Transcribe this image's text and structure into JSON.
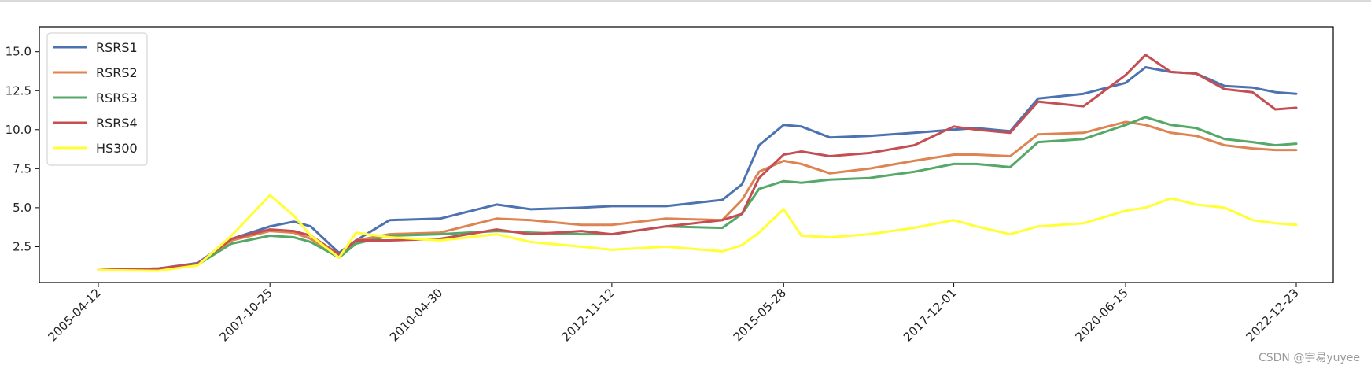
{
  "chart_data": {
    "type": "line",
    "title": "",
    "xlabel": "",
    "ylabel": "",
    "x_ticks": [
      "2005-04-12",
      "2007-10-25",
      "2010-04-30",
      "2012-11-12",
      "2015-05-28",
      "2017-12-01",
      "2020-06-15",
      "2022-12-23"
    ],
    "y_ticks": [
      "2.5",
      "5.0",
      "7.5",
      "10.0",
      "12.5",
      "15.0"
    ],
    "ylim": [
      0.2,
      16.6
    ],
    "grid": false,
    "legend_position": "upper-left",
    "x": [
      "2005-04-12",
      "2006-03-01",
      "2006-10-01",
      "2007-04-01",
      "2007-10-25",
      "2008-03-01",
      "2008-06-01",
      "2008-11-01",
      "2009-02-01",
      "2009-08-01",
      "2010-04-30",
      "2011-03-01",
      "2011-09-01",
      "2012-06-01",
      "2012-11-12",
      "2013-09-01",
      "2014-07-01",
      "2014-10-15",
      "2015-01-15",
      "2015-05-28",
      "2015-09-01",
      "2016-02-01",
      "2016-09-01",
      "2017-05-01",
      "2017-12-01",
      "2018-04-01",
      "2018-10-01",
      "2019-03-01",
      "2019-11-01",
      "2020-06-15",
      "2020-10-01",
      "2021-02-15",
      "2021-07-01",
      "2021-12-01",
      "2022-05-01",
      "2022-09-01",
      "2022-12-23"
    ],
    "series": [
      {
        "name": "RSRS1",
        "color": "#4c72b0",
        "values": [
          1.0,
          1.1,
          1.45,
          3.0,
          3.8,
          4.1,
          3.8,
          2.1,
          2.9,
          4.2,
          4.3,
          5.2,
          4.9,
          5.0,
          5.1,
          5.1,
          5.5,
          6.5,
          9.0,
          10.3,
          10.2,
          9.5,
          9.6,
          9.8,
          10.0,
          10.1,
          9.9,
          12.0,
          12.3,
          13.0,
          14.0,
          13.7,
          13.6,
          12.8,
          12.7,
          12.4,
          12.3
        ]
      },
      {
        "name": "RSRS2",
        "color": "#dd8452",
        "values": [
          1.0,
          1.1,
          1.4,
          2.9,
          3.5,
          3.4,
          3.0,
          1.9,
          2.9,
          3.3,
          3.4,
          4.3,
          4.2,
          3.9,
          3.9,
          4.3,
          4.2,
          5.5,
          7.3,
          8.0,
          7.8,
          7.2,
          7.5,
          8.0,
          8.4,
          8.4,
          8.3,
          9.7,
          9.8,
          10.5,
          10.3,
          9.8,
          9.6,
          9.0,
          8.8,
          8.7,
          8.7
        ]
      },
      {
        "name": "RSRS3",
        "color": "#55a868",
        "values": [
          1.0,
          1.05,
          1.35,
          2.7,
          3.2,
          3.1,
          2.8,
          1.8,
          2.7,
          3.2,
          3.3,
          3.5,
          3.4,
          3.3,
          3.3,
          3.8,
          3.7,
          4.6,
          6.2,
          6.7,
          6.6,
          6.8,
          6.9,
          7.3,
          7.8,
          7.8,
          7.6,
          9.2,
          9.4,
          10.3,
          10.8,
          10.3,
          10.1,
          9.4,
          9.2,
          9.0,
          9.1
        ]
      },
      {
        "name": "RSRS4",
        "color": "#c44e52",
        "values": [
          1.0,
          1.1,
          1.4,
          3.0,
          3.6,
          3.5,
          3.2,
          2.0,
          2.9,
          2.9,
          3.0,
          3.6,
          3.3,
          3.5,
          3.3,
          3.8,
          4.2,
          4.6,
          6.9,
          8.4,
          8.6,
          8.3,
          8.5,
          9.0,
          10.2,
          10.0,
          9.8,
          11.8,
          11.5,
          13.5,
          14.8,
          13.7,
          13.6,
          12.6,
          12.4,
          11.3,
          11.4
        ]
      },
      {
        "name": "HS300",
        "color": "#ffff33",
        "values": [
          1.0,
          0.95,
          1.3,
          3.2,
          5.8,
          4.5,
          3.2,
          1.8,
          3.4,
          3.1,
          2.9,
          3.3,
          2.8,
          2.5,
          2.3,
          2.5,
          2.2,
          2.6,
          3.4,
          4.9,
          3.2,
          3.1,
          3.3,
          3.7,
          4.2,
          3.8,
          3.3,
          3.8,
          4.0,
          4.8,
          5.0,
          5.6,
          5.2,
          5.0,
          4.2,
          4.0,
          3.9
        ]
      }
    ]
  },
  "watermark": "CSDN @宇易yuyee"
}
